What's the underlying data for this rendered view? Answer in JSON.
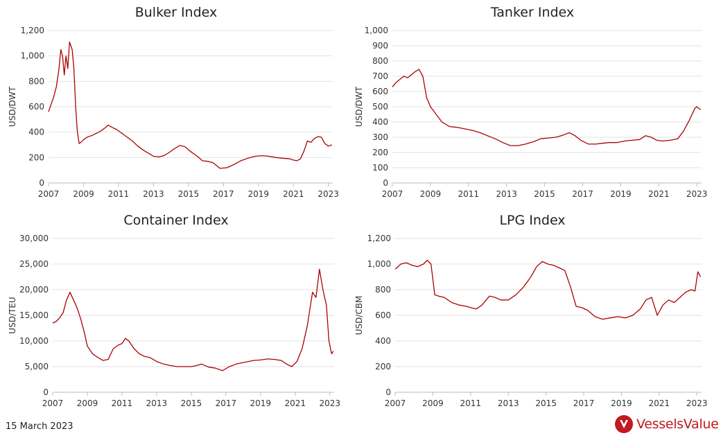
{
  "footer": {
    "date": "15 March 2023"
  },
  "brand": {
    "name": "VesselsValue",
    "color": "#c0191f",
    "logo_icon": "vesselsvalue-logo-icon"
  },
  "line_color": "#aa0000",
  "chart_data": [
    {
      "type": "line",
      "title": "Bulker Index",
      "ylabel": "USD/DWT",
      "xlim": [
        2007,
        2023.25
      ],
      "ylim": [
        0,
        1200
      ],
      "yticks": [
        0,
        200,
        400,
        600,
        800,
        1000,
        1200
      ],
      "ytick_labels": [
        "0",
        "200",
        "400",
        "600",
        "800",
        "1,000",
        "1,200"
      ],
      "xticks": [
        2007,
        2009,
        2011,
        2013,
        2015,
        2017,
        2019,
        2021,
        2023
      ],
      "grid": true,
      "series": [
        {
          "x": [
            2007.0,
            2007.15,
            2007.3,
            2007.45,
            2007.6,
            2007.7,
            2007.8,
            2007.9,
            2008.0,
            2008.1,
            2008.2,
            2008.35,
            2008.45,
            2008.55,
            2008.65,
            2008.75,
            2008.85,
            2009.0,
            2009.2,
            2009.5,
            2009.8,
            2010.0,
            2010.2,
            2010.4,
            2010.6,
            2010.9,
            2011.2,
            2011.5,
            2011.8,
            2012.1,
            2012.4,
            2012.7,
            2013.0,
            2013.3,
            2013.6,
            2013.9,
            2014.2,
            2014.5,
            2014.8,
            2015.1,
            2015.5,
            2015.8,
            2016.1,
            2016.4,
            2016.8,
            2017.2,
            2017.6,
            2018.0,
            2018.4,
            2018.8,
            2019.2,
            2019.6,
            2020.0,
            2020.4,
            2020.8,
            2021.0,
            2021.2,
            2021.4,
            2021.6,
            2021.8,
            2022.0,
            2022.2,
            2022.4,
            2022.6,
            2022.8,
            2023.0,
            2023.2
          ],
          "y": [
            560,
            620,
            680,
            760,
            900,
            1050,
            1000,
            850,
            1000,
            900,
            1110,
            1050,
            900,
            600,
            400,
            310,
            320,
            340,
            360,
            375,
            395,
            410,
            430,
            455,
            440,
            420,
            390,
            360,
            330,
            290,
            260,
            235,
            210,
            205,
            215,
            240,
            270,
            295,
            285,
            250,
            210,
            175,
            170,
            160,
            115,
            120,
            145,
            175,
            195,
            210,
            215,
            210,
            200,
            195,
            190,
            180,
            175,
            190,
            250,
            330,
            320,
            350,
            365,
            360,
            310,
            290,
            300
          ]
        }
      ]
    },
    {
      "type": "line",
      "title": "Tanker Index",
      "ylabel": "USD/DWT",
      "xlim": [
        2007,
        2023.25
      ],
      "ylim": [
        0,
        1000
      ],
      "yticks": [
        0,
        100,
        200,
        300,
        400,
        500,
        600,
        700,
        800,
        900,
        1000
      ],
      "ytick_labels": [
        "0",
        "100",
        "200",
        "300",
        "400",
        "500",
        "600",
        "700",
        "800",
        "900",
        "1,000"
      ],
      "xticks": [
        2007,
        2009,
        2011,
        2013,
        2015,
        2017,
        2019,
        2021,
        2023
      ],
      "grid": true,
      "series": [
        {
          "x": [
            2007.0,
            2007.2,
            2007.4,
            2007.6,
            2007.8,
            2008.0,
            2008.2,
            2008.4,
            2008.6,
            2008.8,
            2009.0,
            2009.3,
            2009.6,
            2010.0,
            2010.4,
            2010.8,
            2011.2,
            2011.6,
            2012.0,
            2012.4,
            2012.8,
            2013.2,
            2013.6,
            2014.0,
            2014.4,
            2014.8,
            2015.2,
            2015.6,
            2016.0,
            2016.3,
            2016.6,
            2016.9,
            2017.3,
            2017.7,
            2018.0,
            2018.4,
            2018.8,
            2019.2,
            2019.6,
            2020.0,
            2020.3,
            2020.6,
            2020.9,
            2021.2,
            2021.6,
            2022.0,
            2022.3,
            2022.6,
            2022.9,
            2023.0,
            2023.2
          ],
          "y": [
            630,
            660,
            680,
            700,
            690,
            710,
            730,
            745,
            700,
            560,
            500,
            450,
            400,
            370,
            365,
            355,
            345,
            330,
            310,
            290,
            265,
            245,
            245,
            255,
            270,
            290,
            295,
            300,
            315,
            330,
            310,
            280,
            255,
            255,
            260,
            265,
            265,
            275,
            280,
            285,
            310,
            300,
            280,
            275,
            280,
            290,
            340,
            410,
            490,
            500,
            480
          ]
        }
      ]
    },
    {
      "type": "line",
      "title": "Container Index",
      "ylabel": "USD/TEU",
      "xlim": [
        2007,
        2023.25
      ],
      "ylim": [
        0,
        30000
      ],
      "yticks": [
        0,
        5000,
        10000,
        15000,
        20000,
        25000,
        30000
      ],
      "ytick_labels": [
        "0",
        "5,000",
        "10,000",
        "15,000",
        "20,000",
        "25,000",
        "30,000"
      ],
      "xticks": [
        2007,
        2009,
        2011,
        2013,
        2015,
        2017,
        2019,
        2021,
        2023
      ],
      "grid": true,
      "series": [
        {
          "x": [
            2007.0,
            2007.2,
            2007.4,
            2007.6,
            2007.8,
            2008.0,
            2008.2,
            2008.4,
            2008.6,
            2008.8,
            2009.0,
            2009.3,
            2009.6,
            2009.9,
            2010.2,
            2010.5,
            2010.8,
            2011.0,
            2011.2,
            2011.4,
            2011.7,
            2012.0,
            2012.3,
            2012.6,
            2013.0,
            2013.4,
            2013.8,
            2014.2,
            2014.6,
            2015.0,
            2015.3,
            2015.6,
            2016.0,
            2016.4,
            2016.8,
            2017.2,
            2017.6,
            2018.0,
            2018.3,
            2018.6,
            2019.0,
            2019.4,
            2019.8,
            2020.2,
            2020.5,
            2020.8,
            2021.1,
            2021.4,
            2021.7,
            2022.0,
            2022.2,
            2022.4,
            2022.6,
            2022.8,
            2022.95,
            2023.1,
            2023.2
          ],
          "y": [
            13500,
            13800,
            14500,
            15500,
            18000,
            19500,
            18000,
            16500,
            14500,
            12000,
            9000,
            7500,
            6800,
            6200,
            6400,
            8500,
            9200,
            9500,
            10500,
            10000,
            8500,
            7500,
            7000,
            6800,
            6000,
            5500,
            5200,
            5000,
            5000,
            5000,
            5200,
            5500,
            4900,
            4700,
            4200,
            5000,
            5500,
            5800,
            6000,
            6200,
            6300,
            6500,
            6400,
            6200,
            5500,
            5000,
            6000,
            8500,
            13000,
            19500,
            18500,
            24000,
            20000,
            17000,
            10000,
            7500,
            8000
          ]
        }
      ]
    },
    {
      "type": "line",
      "title": "LPG Index",
      "ylabel": "USD/CBM",
      "xlim": [
        2007,
        2023.25
      ],
      "ylim": [
        0,
        1200
      ],
      "yticks": [
        0,
        200,
        400,
        600,
        800,
        1000,
        1200
      ],
      "ytick_labels": [
        "0",
        "200",
        "400",
        "600",
        "800",
        "1,000",
        "1,200"
      ],
      "xticks": [
        2007,
        2009,
        2011,
        2013,
        2015,
        2017,
        2019,
        2021,
        2023
      ],
      "grid": true,
      "series": [
        {
          "x": [
            2007.0,
            2007.3,
            2007.6,
            2007.9,
            2008.2,
            2008.5,
            2008.7,
            2008.9,
            2009.1,
            2009.3,
            2009.6,
            2010.0,
            2010.4,
            2010.8,
            2011.0,
            2011.3,
            2011.6,
            2012.0,
            2012.3,
            2012.6,
            2013.0,
            2013.4,
            2013.8,
            2014.2,
            2014.5,
            2014.8,
            2015.1,
            2015.4,
            2015.7,
            2016.0,
            2016.3,
            2016.6,
            2016.9,
            2017.2,
            2017.6,
            2018.0,
            2018.4,
            2018.8,
            2019.2,
            2019.6,
            2020.0,
            2020.3,
            2020.6,
            2020.9,
            2021.2,
            2021.5,
            2021.8,
            2022.1,
            2022.4,
            2022.7,
            2022.9,
            2023.05,
            2023.2
          ],
          "y": [
            960,
            1000,
            1010,
            990,
            980,
            1000,
            1030,
            1000,
            760,
            750,
            740,
            700,
            680,
            670,
            660,
            650,
            680,
            750,
            740,
            720,
            720,
            760,
            820,
            900,
            980,
            1020,
            1000,
            990,
            970,
            950,
            820,
            670,
            660,
            640,
            590,
            570,
            580,
            590,
            580,
            600,
            650,
            720,
            740,
            600,
            680,
            720,
            700,
            740,
            780,
            800,
            790,
            940,
            900
          ]
        }
      ]
    }
  ]
}
